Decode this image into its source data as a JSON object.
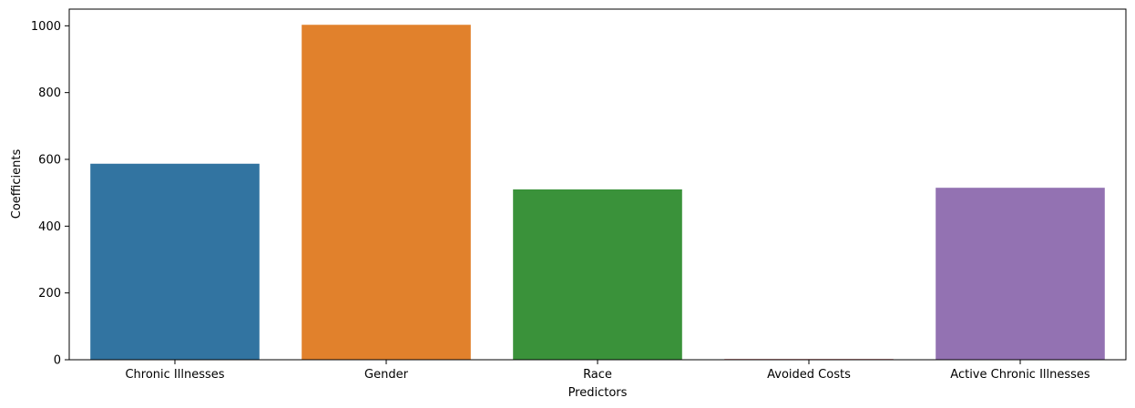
{
  "chart_data": {
    "type": "bar",
    "title": "",
    "xlabel": "Predictors",
    "ylabel": "Coefficients",
    "categories": [
      "Chronic Illnesses",
      "Gender",
      "Race",
      "Avoided Costs",
      "Active Chronic Illnesses"
    ],
    "values": [
      587,
      1003,
      510,
      2,
      515
    ],
    "colors": [
      "#3274a1",
      "#e1812c",
      "#3a923a",
      "#c03d3e",
      "#9372b2"
    ],
    "ylim": [
      0,
      1050
    ],
    "yticks": [
      0,
      200,
      400,
      600,
      800,
      1000
    ],
    "grid": false,
    "legend": "none"
  }
}
